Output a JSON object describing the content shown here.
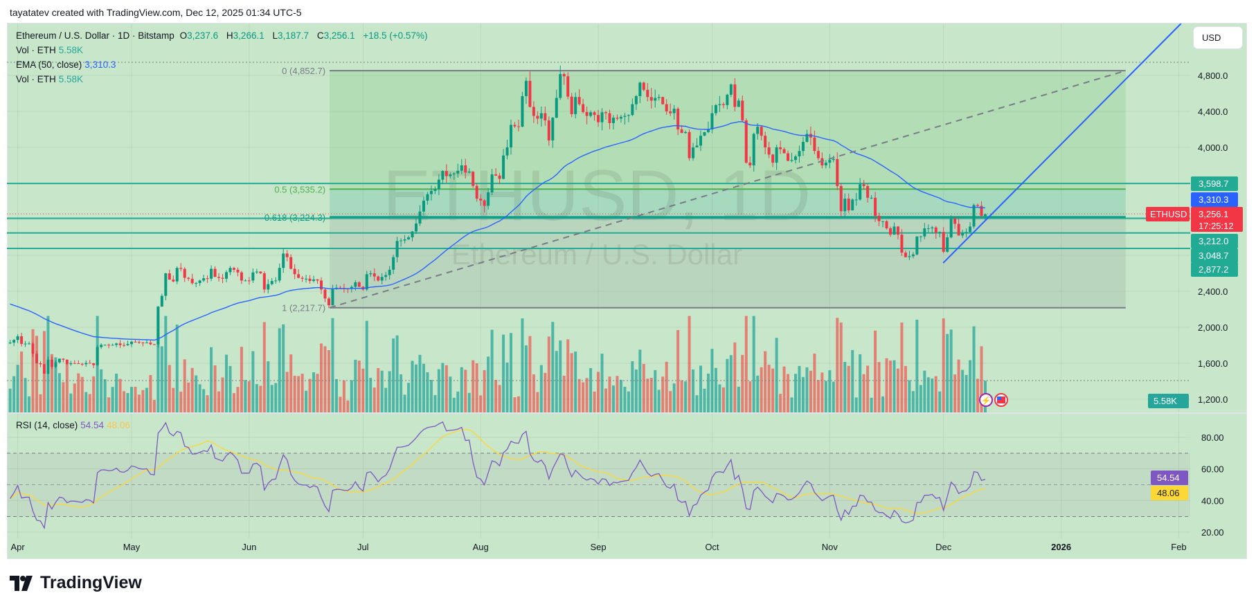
{
  "header": {
    "attribution": "tayatatev created with TradingView.com, Dec 12, 2025 01:34 UTC-5"
  },
  "legend": {
    "symbol": "Ethereum / U.S. Dollar · 1D · Bitstamp",
    "o_label": "O",
    "o": "3,237.6",
    "h_label": "H",
    "h": "3,266.1",
    "l_label": "L",
    "l": "3,187.7",
    "c_label": "C",
    "c": "3,256.1",
    "change": "+18.5 (+0.57%)",
    "vol_label": "Vol · ETH",
    "vol": "5.58K",
    "ema_label": "EMA (50, close)",
    "ema": "3,310.3",
    "vol2_label": "Vol · ETH",
    "vol2": "5.58K",
    "rsi_label": "RSI (14, close)",
    "rsi": "54.54",
    "rsi_ma": "48.06"
  },
  "watermark": {
    "line1": "ETHUSD, 1D",
    "line2": "Ethereum / U.S. Dollar"
  },
  "currency_button": "USD",
  "symbol_tag": "ETHUSD",
  "footer": {
    "logo_text": "TradingView"
  },
  "colors": {
    "up": "#089981",
    "down": "#f23645",
    "ema": "#2962ff",
    "rsi": "#7e57c2",
    "rsi_ma": "#fdd835",
    "hline": "#22ab94",
    "background": "#c8e6c9"
  },
  "chart_data": {
    "type": "candlestick",
    "symbol": "ETHUSD",
    "interval": "1D",
    "x_unit": "days since Apr 1, 2025",
    "close_anchors": [
      [
        -2,
        1830
      ],
      [
        0,
        1900
      ],
      [
        1,
        1815
      ],
      [
        3,
        1820
      ],
      [
        5,
        1600
      ],
      [
        6,
        1590
      ],
      [
        7,
        1485
      ],
      [
        8,
        1640
      ],
      [
        9,
        1560
      ],
      [
        10,
        1610
      ],
      [
        11,
        1650
      ],
      [
        12,
        1640
      ],
      [
        13,
        1590
      ],
      [
        15,
        1600
      ],
      [
        17,
        1590
      ],
      [
        19,
        1600
      ],
      [
        20,
        1580
      ],
      [
        21,
        1780
      ],
      [
        22,
        1805
      ],
      [
        24,
        1800
      ],
      [
        26,
        1820
      ],
      [
        28,
        1800
      ],
      [
        30,
        1840
      ],
      [
        32,
        1830
      ],
      [
        34,
        1830
      ],
      [
        36,
        1810
      ],
      [
        37,
        2230
      ],
      [
        38,
        2350
      ],
      [
        39,
        2600
      ],
      [
        40,
        2530
      ],
      [
        41,
        2510
      ],
      [
        42,
        2660
      ],
      [
        43,
        2650
      ],
      [
        44,
        2550
      ],
      [
        45,
        2540
      ],
      [
        46,
        2490
      ],
      [
        48,
        2520
      ],
      [
        50,
        2540
      ],
      [
        51,
        2650
      ],
      [
        52,
        2560
      ],
      [
        54,
        2540
      ],
      [
        56,
        2660
      ],
      [
        57,
        2640
      ],
      [
        58,
        2610
      ],
      [
        59,
        2520
      ],
      [
        61,
        2520
      ],
      [
        62,
        2610
      ],
      [
        64,
        2600
      ],
      [
        65,
        2420
      ],
      [
        66,
        2480
      ],
      [
        68,
        2520
      ],
      [
        69,
        2660
      ],
      [
        70,
        2820
      ],
      [
        71,
        2780
      ],
      [
        72,
        2650
      ],
      [
        73,
        2590
      ],
      [
        74,
        2550
      ],
      [
        76,
        2540
      ],
      [
        77,
        2515
      ],
      [
        79,
        2520
      ],
      [
        80,
        2420
      ],
      [
        81,
        2320
      ],
      [
        82,
        2245
      ],
      [
        83,
        2430
      ],
      [
        84,
        2440
      ],
      [
        86,
        2430
      ],
      [
        88,
        2450
      ],
      [
        89,
        2500
      ],
      [
        91,
        2420
      ],
      [
        92,
        2590
      ],
      [
        93,
        2600
      ],
      [
        95,
        2520
      ],
      [
        96,
        2560
      ],
      [
        97,
        2580
      ],
      [
        98,
        2640
      ],
      [
        99,
        2780
      ],
      [
        100,
        2960
      ],
      [
        101,
        2965
      ],
      [
        103,
        3000
      ],
      [
        105,
        3154
      ],
      [
        107,
        3408
      ],
      [
        108,
        3480
      ],
      [
        110,
        3538
      ],
      [
        112,
        3738
      ],
      [
        113,
        3680
      ],
      [
        114,
        3700
      ],
      [
        115,
        3710
      ],
      [
        116,
        3740
      ],
      [
        117,
        3800
      ],
      [
        118,
        3720
      ],
      [
        119,
        3730
      ],
      [
        121,
        3430
      ],
      [
        123,
        3350
      ],
      [
        124,
        3500
      ],
      [
        125,
        3700
      ],
      [
        127,
        3650
      ],
      [
        128,
        3910
      ],
      [
        129,
        4000
      ],
      [
        130,
        4250
      ],
      [
        132,
        4230
      ],
      [
        133,
        4570
      ],
      [
        134,
        4740
      ],
      [
        135,
        4450
      ],
      [
        136,
        4350
      ],
      [
        137,
        4320
      ],
      [
        138,
        4380
      ],
      [
        139,
        4300
      ],
      [
        140,
        4077
      ],
      [
        141,
        4330
      ],
      [
        143,
        4815
      ],
      [
        144,
        4790
      ],
      [
        146,
        4370
      ],
      [
        147,
        4560
      ],
      [
        148,
        4480
      ],
      [
        150,
        4350
      ],
      [
        151,
        4390
      ],
      [
        152,
        4360
      ],
      [
        153,
        4280
      ],
      [
        154,
        4390
      ],
      [
        155,
        4380
      ],
      [
        156,
        4270
      ],
      [
        157,
        4330
      ],
      [
        158,
        4320
      ],
      [
        159,
        4340
      ],
      [
        161,
        4360
      ],
      [
        162,
        4480
      ],
      [
        163,
        4570
      ],
      [
        164,
        4720
      ],
      [
        165,
        4640
      ],
      [
        166,
        4560
      ],
      [
        167,
        4520
      ],
      [
        168,
        4550
      ],
      [
        169,
        4560
      ],
      [
        170,
        4480
      ],
      [
        171,
        4400
      ],
      [
        172,
        4380
      ],
      [
        173,
        4430
      ],
      [
        174,
        4200
      ],
      [
        175,
        4160
      ],
      [
        176,
        4170
      ],
      [
        177,
        3880
      ],
      [
        178,
        4000
      ],
      [
        179,
        4020
      ],
      [
        180,
        4130
      ],
      [
        181,
        4170
      ],
      [
        182,
        4200
      ],
      [
        183,
        4380
      ],
      [
        184,
        4470
      ],
      [
        185,
        4480
      ],
      [
        186,
        4470
      ],
      [
        188,
        4700
      ],
      [
        189,
        4450
      ],
      [
        190,
        4520
      ],
      [
        191,
        4300
      ],
      [
        192,
        3830
      ],
      [
        193,
        3800
      ],
      [
        194,
        4150
      ],
      [
        195,
        4230
      ],
      [
        196,
        4130
      ],
      [
        197,
        4000
      ],
      [
        198,
        3920
      ],
      [
        199,
        3830
      ],
      [
        200,
        4000
      ],
      [
        201,
        3980
      ],
      [
        203,
        3850
      ],
      [
        204,
        3860
      ],
      [
        205,
        3900
      ],
      [
        206,
        3960
      ],
      [
        208,
        4150
      ],
      [
        209,
        4110
      ],
      [
        210,
        3960
      ],
      [
        211,
        3880
      ],
      [
        212,
        3800
      ],
      [
        213,
        3830
      ],
      [
        214,
        3860
      ],
      [
        215,
        3870
      ],
      [
        216,
        3570
      ],
      [
        217,
        3290
      ],
      [
        218,
        3430
      ],
      [
        219,
        3300
      ],
      [
        220,
        3420
      ],
      [
        221,
        3420
      ],
      [
        222,
        3590
      ],
      [
        223,
        3570
      ],
      [
        224,
        3440
      ],
      [
        225,
        3440
      ],
      [
        226,
        3240
      ],
      [
        227,
        3180
      ],
      [
        228,
        3180
      ],
      [
        229,
        3100
      ],
      [
        230,
        3030
      ],
      [
        231,
        3120
      ],
      [
        232,
        3030
      ],
      [
        233,
        2830
      ],
      [
        234,
        2780
      ],
      [
        235,
        2790
      ],
      [
        236,
        2810
      ],
      [
        237,
        3010
      ],
      [
        238,
        3010
      ],
      [
        239,
        3100
      ],
      [
        240,
        3100
      ],
      [
        241,
        3110
      ],
      [
        242,
        3050
      ],
      [
        243,
        3060
      ],
      [
        244,
        2840
      ],
      [
        245,
        3000
      ],
      [
        246,
        3210
      ],
      [
        247,
        3150
      ],
      [
        248,
        3020
      ],
      [
        249,
        3050
      ],
      [
        250,
        3060
      ],
      [
        251,
        3120
      ],
      [
        252,
        3360
      ],
      [
        253,
        3350
      ],
      [
        254,
        3240
      ],
      [
        255,
        3256.1
      ]
    ],
    "last_candle": {
      "open": 3237.6,
      "high": 3266.1,
      "low": 3187.7,
      "close": 3256.1
    },
    "price_axis": {
      "range": [
        1100,
        5150
      ],
      "ticks": [
        {
          "price": 4800,
          "label": "4,800.0"
        },
        {
          "price": 4400,
          "label": "4,400.0"
        },
        {
          "price": 4000,
          "label": "4,000.0"
        },
        {
          "price": 2400,
          "label": "2,400.0"
        },
        {
          "price": 2000,
          "label": "2,000.0"
        },
        {
          "price": 1600,
          "label": "1,600.0"
        },
        {
          "price": 1200,
          "label": "1,200.0"
        }
      ]
    },
    "time_axis": [
      {
        "label": "Apr",
        "day": 0
      },
      {
        "label": "May",
        "day": 30
      },
      {
        "label": "Jun",
        "day": 61
      },
      {
        "label": "Jul",
        "day": 91
      },
      {
        "label": "Aug",
        "day": 122
      },
      {
        "label": "Sep",
        "day": 153
      },
      {
        "label": "Oct",
        "day": 183
      },
      {
        "label": "Nov",
        "day": 214
      },
      {
        "label": "Dec",
        "day": 244
      },
      {
        "label": "2026",
        "day": 275,
        "bold": true
      },
      {
        "label": "Feb",
        "day": 306
      }
    ],
    "fib_retracement": {
      "start_day": 82.2,
      "end_day": 292,
      "levels": [
        {
          "ratio": 0,
          "price": 4852.7,
          "label": "0 (4,852.7)",
          "color": "#787b86"
        },
        {
          "ratio": 0.5,
          "price": 3535.2,
          "label": "0.5 (3,535.2)",
          "color": "#4caf50"
        },
        {
          "ratio": 0.618,
          "price": 3224.3,
          "label": "0.618 (3,224.3)",
          "color": "#089981"
        },
        {
          "ratio": 1,
          "price": 2217.7,
          "label": "1 (2,217.7)",
          "color": "#787b86"
        }
      ]
    },
    "horizontal_lines": [
      3598.7,
      3212.0,
      3048.7,
      2877.2
    ],
    "trendlines": [
      {
        "name": "dashed-trendline",
        "from": [
          82.2,
          2217.7
        ],
        "to": [
          292,
          4852.7
        ],
        "style": "dashed",
        "color": "#787b86"
      },
      {
        "name": "blue-trendline",
        "from": [
          243.9,
          2715
        ],
        "to": [
          306.6,
          5377
        ],
        "style": "solid",
        "color": "#2962ff"
      }
    ],
    "price_labels": [
      {
        "text": "3,598.7",
        "color": "#22ab94"
      },
      {
        "text": "3,310.3",
        "color": "#2962ff"
      },
      {
        "text": "3,256.1",
        "sub": "17:25:12",
        "color": "#f23645"
      },
      {
        "text": "3,212.0",
        "color": "#22ab94"
      },
      {
        "text": "3,048.7",
        "color": "#22ab94"
      },
      {
        "text": "2,877.2",
        "color": "#22ab94"
      }
    ],
    "ema": {
      "period": 50,
      "last": 3310.3,
      "seed": 2277
    },
    "volume": {
      "last": 5.58,
      "label": "5.58K"
    },
    "rsi": {
      "period": 14,
      "last": 54.54,
      "ma_last": 48.06,
      "bands": [
        70,
        50,
        30
      ],
      "ticks": [
        "80.00",
        "60.00",
        "40.00",
        "20.00"
      ],
      "labels": [
        "54.54",
        "48.06"
      ]
    }
  }
}
